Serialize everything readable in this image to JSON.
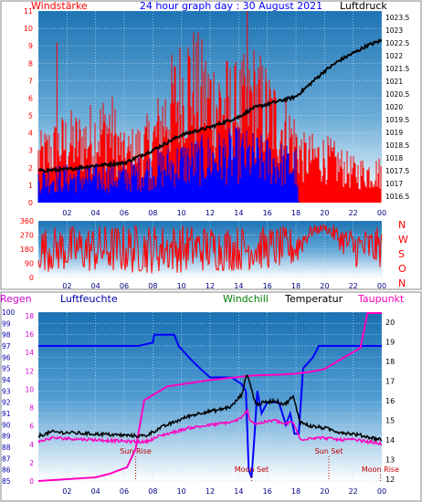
{
  "title": "24 hour graph day : 30 August 2021",
  "colors": {
    "red": "#ff0000",
    "blue": "#0000ff",
    "black": "#000000",
    "magenta": "#ff00c0",
    "green": "#00a000",
    "navy": "#000080",
    "purple": "#cc00cc"
  },
  "chart_data": [
    {
      "type": "bar",
      "name": "wind",
      "left_label": "Windstärke",
      "right_label": "Luftdruck",
      "x_ticks": [
        "02",
        "04",
        "06",
        "08",
        "10",
        "12",
        "14",
        "16",
        "18",
        "20",
        "22",
        "00"
      ],
      "y_left_ticks": [
        "0",
        "1",
        "2",
        "3",
        "4",
        "5",
        "6",
        "7",
        "8",
        "9",
        "10",
        "11"
      ],
      "y_left_range": [
        0,
        11
      ],
      "y_right_ticks": [
        "1016.5",
        "1017",
        "1017.5",
        "1018",
        "1018.5",
        "1019",
        "1019.5",
        "1020",
        "1020.5",
        "1021",
        "1021.5",
        "1022",
        "1022.5",
        "1023",
        "1023.5"
      ],
      "y_right_range": [
        1016.25,
        1023.75
      ],
      "gust_profile": {
        "x": [
          0,
          2,
          3,
          5,
          6,
          8,
          9,
          10.5,
          11.5,
          14,
          15,
          16,
          17,
          18,
          18.5,
          20,
          22,
          24
        ],
        "y": [
          3,
          4,
          4,
          5,
          3,
          4,
          6,
          8,
          7,
          6,
          7,
          6,
          5,
          4,
          3,
          3,
          2,
          2
        ]
      },
      "gust_spikes": [
        {
          "x": 1.3,
          "y": 9.2
        },
        {
          "x": 14.6,
          "y": 11.0
        }
      ],
      "mean_wind_profile": {
        "x": [
          0,
          6,
          10,
          14,
          18,
          18.2,
          24
        ],
        "y": [
          1.7,
          1.8,
          2.8,
          3.4,
          2.5,
          0,
          0
        ]
      },
      "pressure": {
        "x": [
          0,
          2,
          4,
          6,
          7,
          8,
          9,
          10,
          11,
          12,
          13,
          14,
          15,
          16,
          17,
          18,
          19,
          20,
          21,
          22,
          23,
          24
        ],
        "y": [
          1017.5,
          1017.55,
          1017.7,
          1017.8,
          1018.05,
          1018.3,
          1018.6,
          1018.9,
          1019.05,
          1019.2,
          1019.4,
          1019.6,
          1019.95,
          1020.1,
          1020.25,
          1020.4,
          1020.9,
          1021.4,
          1021.8,
          1022.1,
          1022.4,
          1022.6
        ]
      },
      "grid": true
    },
    {
      "type": "line",
      "name": "direction",
      "left_ticks": [
        "0",
        "90",
        "180",
        "270",
        "360"
      ],
      "y_range": [
        0,
        360
      ],
      "right_letters": [
        "N",
        "W",
        "S",
        "O",
        "N"
      ],
      "x_ticks": [
        "02",
        "04",
        "06",
        "08",
        "10",
        "12",
        "14",
        "16",
        "18",
        "20",
        "22",
        "00"
      ],
      "profile": {
        "x": [
          0,
          2,
          6,
          10,
          14,
          18,
          19,
          20,
          22,
          24
        ],
        "low": [
          40,
          30,
          20,
          30,
          40,
          60,
          250,
          300,
          60,
          60
        ],
        "high": [
          320,
          330,
          340,
          340,
          330,
          320,
          330,
          340,
          320,
          320
        ]
      },
      "grid": true
    },
    {
      "type": "line",
      "name": "climate",
      "labels": {
        "rain": "Regen",
        "humidity": "Luftfeuchte",
        "windchill": "Windchill",
        "temperature": "Temperatur",
        "dewpoint": "Taupunkt"
      },
      "humidity_ticks": [
        "85",
        "86",
        "87",
        "88",
        "89",
        "90",
        "91",
        "92",
        "93",
        "94",
        "95",
        "96",
        "97",
        "98",
        "99",
        "100"
      ],
      "humidity_range": [
        85,
        100
      ],
      "rain_ticks": [
        "0",
        "2",
        "4",
        "6",
        "8",
        "10",
        "12",
        "14",
        "16",
        "18"
      ],
      "rain_range": [
        0,
        18.4
      ],
      "temp_ticks": [
        "12",
        "13",
        "14",
        "15",
        "16",
        "17",
        "18",
        "19",
        "20"
      ],
      "temp_range": [
        11.9,
        20.5
      ],
      "x_ticks": [
        "02",
        "04",
        "06",
        "08",
        "10",
        "12",
        "14",
        "16",
        "18",
        "20",
        "22",
        "00"
      ],
      "events": [
        {
          "label": "Sun Rise",
          "x": 6.8
        },
        {
          "label": "Moon Set",
          "x": 14.9
        },
        {
          "label": "Sun Set",
          "x": 20.3
        },
        {
          "label": "Moon Rise",
          "x": 23.9
        }
      ],
      "humidity": {
        "x": [
          0,
          1,
          6.8,
          7,
          8,
          8.1,
          9.5,
          9.8,
          10.5,
          11.3,
          12,
          13.5,
          14.2,
          14.5,
          14.7,
          14.9,
          15.1,
          15.3,
          15.6,
          16,
          16.8,
          17.3,
          17.6,
          17.9,
          18.2,
          18.5,
          19.2,
          19.6,
          20.3,
          24
        ],
        "y": [
          97,
          97,
          97,
          97,
          97.3,
          98,
          98,
          97,
          96,
          95,
          94.2,
          94.2,
          93.6,
          93,
          86,
          85.3,
          89,
          93,
          91,
          92,
          92,
          90,
          91,
          89.2,
          89.2,
          95,
          96,
          97,
          97,
          97
        ]
      },
      "rain": {
        "x": [
          0,
          4,
          5,
          6.2,
          6.8,
          7.4,
          9,
          12,
          15,
          17,
          18,
          19,
          20,
          20.2,
          22.5,
          23,
          24
        ],
        "y": [
          0,
          0.4,
          0.8,
          1.5,
          3.5,
          8.8,
          10.3,
          11,
          11.5,
          11.6,
          11.7,
          11.9,
          12.2,
          12.4,
          14.5,
          18.3,
          18.3
        ]
      },
      "temperature": {
        "x": [
          0,
          0.5,
          1,
          6.8,
          7.5,
          8.5,
          9.5,
          10.5,
          11.5,
          12.5,
          13.5,
          14.2,
          14.6,
          14.8,
          15.2,
          15.8,
          16.5,
          17.2,
          17.8,
          18.3,
          19,
          20,
          21,
          22,
          24
        ],
        "y": [
          14.2,
          14.3,
          14.4,
          14.2,
          14.2,
          14.6,
          14.9,
          15.2,
          15.4,
          15.5,
          15.7,
          16.3,
          17.4,
          16.8,
          15.8,
          15.9,
          16.0,
          15.8,
          16.2,
          14.9,
          14.7,
          14.6,
          14.4,
          14.3,
          14.0
        ]
      },
      "dewpoint": {
        "x": [
          0,
          0.5,
          1,
          6.8,
          7.5,
          8.5,
          9.5,
          10.5,
          11.5,
          12.5,
          13.5,
          14.2,
          14.6,
          14.8,
          15.2,
          15.8,
          16.5,
          17.2,
          17.8,
          18.3,
          19,
          20,
          21,
          22,
          24
        ],
        "y": [
          13.9,
          14.0,
          14.1,
          13.9,
          13.9,
          14.2,
          14.4,
          14.6,
          14.7,
          14.8,
          14.9,
          15.1,
          15.5,
          15.0,
          14.8,
          14.9,
          15.0,
          14.8,
          14.9,
          14.0,
          14.1,
          14.1,
          14.0,
          14.0,
          13.8
        ]
      },
      "grid": true
    }
  ]
}
